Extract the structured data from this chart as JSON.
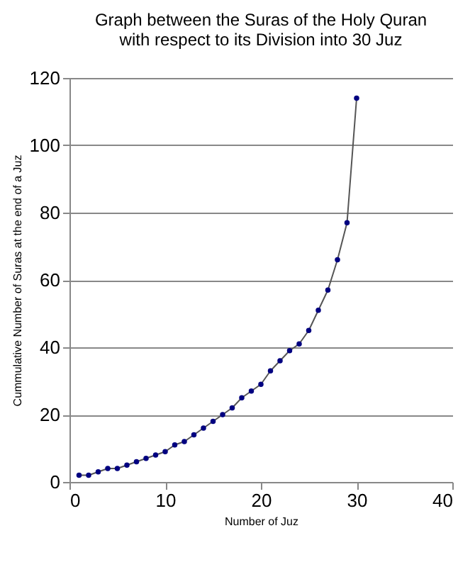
{
  "chart_data": {
    "type": "line",
    "title": [
      "Graph between the Suras of the Holy Quran",
      "with respect to its Division into 30 Juz"
    ],
    "xlabel": "Number of Juz",
    "ylabel": "Cummulative Number of Suras at the end of a Juz",
    "x": [
      1,
      2,
      3,
      4,
      5,
      6,
      7,
      8,
      9,
      10,
      11,
      12,
      13,
      14,
      15,
      16,
      17,
      18,
      19,
      20,
      21,
      22,
      23,
      24,
      25,
      26,
      27,
      28,
      29,
      30
    ],
    "series": [
      {
        "color": "#000080",
        "values": [
          2,
          2,
          3,
          4,
          4,
          5,
          6,
          7,
          8,
          9,
          11,
          12,
          14,
          16,
          18,
          20,
          22,
          25,
          27,
          29,
          33,
          36,
          39,
          41,
          45,
          51,
          57,
          66,
          77,
          114
        ]
      }
    ],
    "xlim": [
      0,
      40
    ],
    "xticks": [
      0,
      10,
      20,
      30,
      40
    ],
    "ylim": [
      0,
      120
    ],
    "yticks": [
      0,
      20,
      40,
      60,
      80,
      100,
      120
    ],
    "grid": "y",
    "marker": "circle",
    "line_style": "solid"
  }
}
